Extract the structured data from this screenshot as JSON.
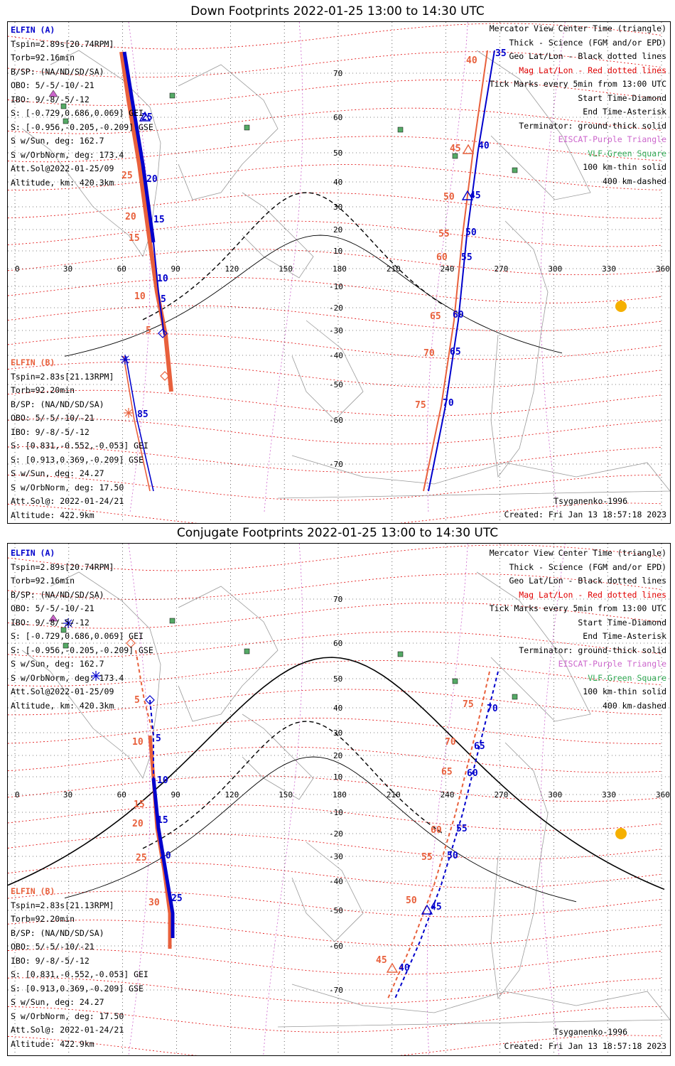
{
  "top": {
    "title": "Down Footprints 2022-01-25 13:00 to 14:30 UTC",
    "elfin_a": {
      "name": "ELFIN (A)",
      "tspin": "Tspin=2.89s[20.74RPM]",
      "torb": "Torb=92.16min",
      "bsp": "B/SP: (NA/ND/SD/SA)",
      "obo": "OBO: 5/-5/-10/-21",
      "ibo": "IBO: 9/-8/-5/-12",
      "s_gei": "S: [-0.729,0.686,0.069] GEI",
      "s_gse": "S: [-0.956,-0.205,-0.209] GSE",
      "s_sun": "S w/Sun, deg: 162.7",
      "s_orb": "S w/OrbNorm, deg: 173.4",
      "attsol": "Att.Sol@2022-01-25/09",
      "alt": "Altitude, km: 420.3km"
    },
    "elfin_b": {
      "name": "ELFIN (B)",
      "tspin": "Tspin=2.83s[21.13RPM]",
      "torb": "Torb=92.20min",
      "bsp": "B/SP: (NA/ND/SD/SA)",
      "obo": "OBO: 5/-5/-10/-21",
      "ibo": "IBO: 9/-8/-5/-12",
      "s_gei": "S: [0.831,-0.552,-0.053] GEI",
      "s_gse": "S: [0.913,0.369,-0.209] GSE",
      "s_sun": "S w/Sun, deg: 24.27",
      "s_orb": "S w/OrbNorm, deg: 17.50",
      "attsol": "Att.Sol@: 2022-01-24/21",
      "alt": "Altitude: 422.9km"
    },
    "legend": {
      "l1": "Mercator View Center Time (triangle)",
      "l2": "Thick - Science (FGM and/or EPD)",
      "l3": "Geo Lat/Lon - Black dotted lines",
      "l4": "Mag Lat/Lon - Red dotted lines",
      "l5": "Tick Marks every 5min from 13:00 UTC",
      "l6": "Start Time-Diamond",
      "l7": "End Time-Asterisk",
      "l8": "Terminator: ground-thick solid",
      "l9": "EISCAT-Purple Triangle",
      "l10": "VLF-Green Square",
      "l11": "100 km-thin solid",
      "l12": "400 km-dashed"
    },
    "model": "Tsyganenko-1996",
    "created": "Created: Fri Jan 13 18:57:18 2023"
  },
  "bottom": {
    "title": "Conjugate Footprints 2022-01-25 13:00 to 14:30 UTC",
    "elfin_a": {
      "name": "ELFIN (A)",
      "tspin": "Tspin=2.89s[20.74RPM]",
      "torb": "Torb=92.16min",
      "bsp": "B/SP: (NA/ND/SD/SA)",
      "obo": "OBO: 5/-5/-10/-21",
      "ibo": "IBO: 9/-8/-5/-12",
      "s_gei": "S: [-0.729,0.686,0.069] GEI",
      "s_gse": "S: [-0.956,-0.205,-0.209] GSE",
      "s_sun": "S w/Sun, deg: 162.7",
      "s_orb": "S w/OrbNorm, deg: 173.4",
      "attsol": "Att.Sol@2022-01-25/09",
      "alt": "Altitude, km: 420.3km"
    },
    "elfin_b": {
      "name": "ELFIN (B)",
      "tspin": "Tspin=2.83s[21.13RPM]",
      "torb": "Torb=92.20min",
      "bsp": "B/SP: (NA/ND/SD/SA)",
      "obo": "OBO: 5/-5/-10/-21",
      "ibo": "IBO: 9/-8/-5/-12",
      "s_gei": "S: [0.831,-0.552,-0.053] GEI",
      "s_gse": "S: [0.913,0.369,-0.209] GSE",
      "s_sun": "S w/Sun, deg: 24.27",
      "s_orb": "S w/OrbNorm, deg: 17.50",
      "attsol": "Att.Sol@: 2022-01-24/21",
      "alt": "Altitude: 422.9km"
    },
    "legend": {
      "l1": "Mercator View Center Time (triangle)",
      "l2": "Thick - Science (FGM and/or EPD)",
      "l3": "Geo Lat/Lon - Black dotted lines",
      "l4": "Mag Lat/Lon - Red dotted lines",
      "l5": "Tick Marks every 5min from 13:00 UTC",
      "l6": "Start Time-Diamond",
      "l7": "End Time-Asterisk",
      "l8": "Terminator: ground-thick solid",
      "l9": "EISCAT-Purple Triangle",
      "l10": "VLF-Green Square",
      "l11": "100 km-thin solid",
      "l12": "400 km-dashed"
    },
    "model": "Tsyganenko-1996",
    "created": "Created: Fri Jan 13 18:57:18 2023"
  },
  "axes": {
    "lon_ticks": [
      "0",
      "30",
      "60",
      "90",
      "120",
      "150",
      "180",
      "210",
      "240",
      "270",
      "300",
      "330",
      "360"
    ],
    "lat_ticks_north": [
      "70",
      "60",
      "50",
      "40",
      "30",
      "20",
      "10"
    ],
    "lat_ticks_south": [
      "-10",
      "-20",
      "-30",
      "-40",
      "-50",
      "-60",
      "-70"
    ]
  },
  "colors": {
    "elfin_a": "#0000cc",
    "elfin_b": "#e8603c",
    "mag_grid": "#e00000",
    "eiscat": "#cc66cc",
    "vlf": "#55aa66",
    "sun": "#f5b000"
  },
  "top_tracks": {
    "a_ticks": [
      "35",
      "40",
      "45",
      "50",
      "55",
      "60",
      "65",
      "70",
      "85",
      "5",
      "10",
      "15",
      "20",
      "25"
    ],
    "a_ticks_west": [
      "25",
      "20",
      "15",
      "10",
      "5"
    ],
    "a_ticks_east": [
      "35",
      "40",
      "45",
      "50",
      "55",
      "60",
      "65",
      "70"
    ],
    "b_ticks_west": [
      "25",
      "20",
      "15",
      "10",
      "5"
    ],
    "b_ticks_east": [
      "40",
      "45",
      "50",
      "55",
      "60",
      "65",
      "70",
      "75"
    ],
    "a_orbit_label": "85"
  },
  "bottom_tracks": {
    "a_ticks_west": [
      "5",
      "10",
      "15",
      "20",
      "25"
    ],
    "a_ticks_east": [
      "40",
      "45",
      "50",
      "55",
      "60",
      "65",
      "70"
    ],
    "b_ticks_west": [
      "5",
      "10",
      "15",
      "20",
      "25",
      "30"
    ],
    "b_ticks_east": [
      "45",
      "50",
      "55",
      "60",
      "65",
      "70",
      "75"
    ]
  }
}
